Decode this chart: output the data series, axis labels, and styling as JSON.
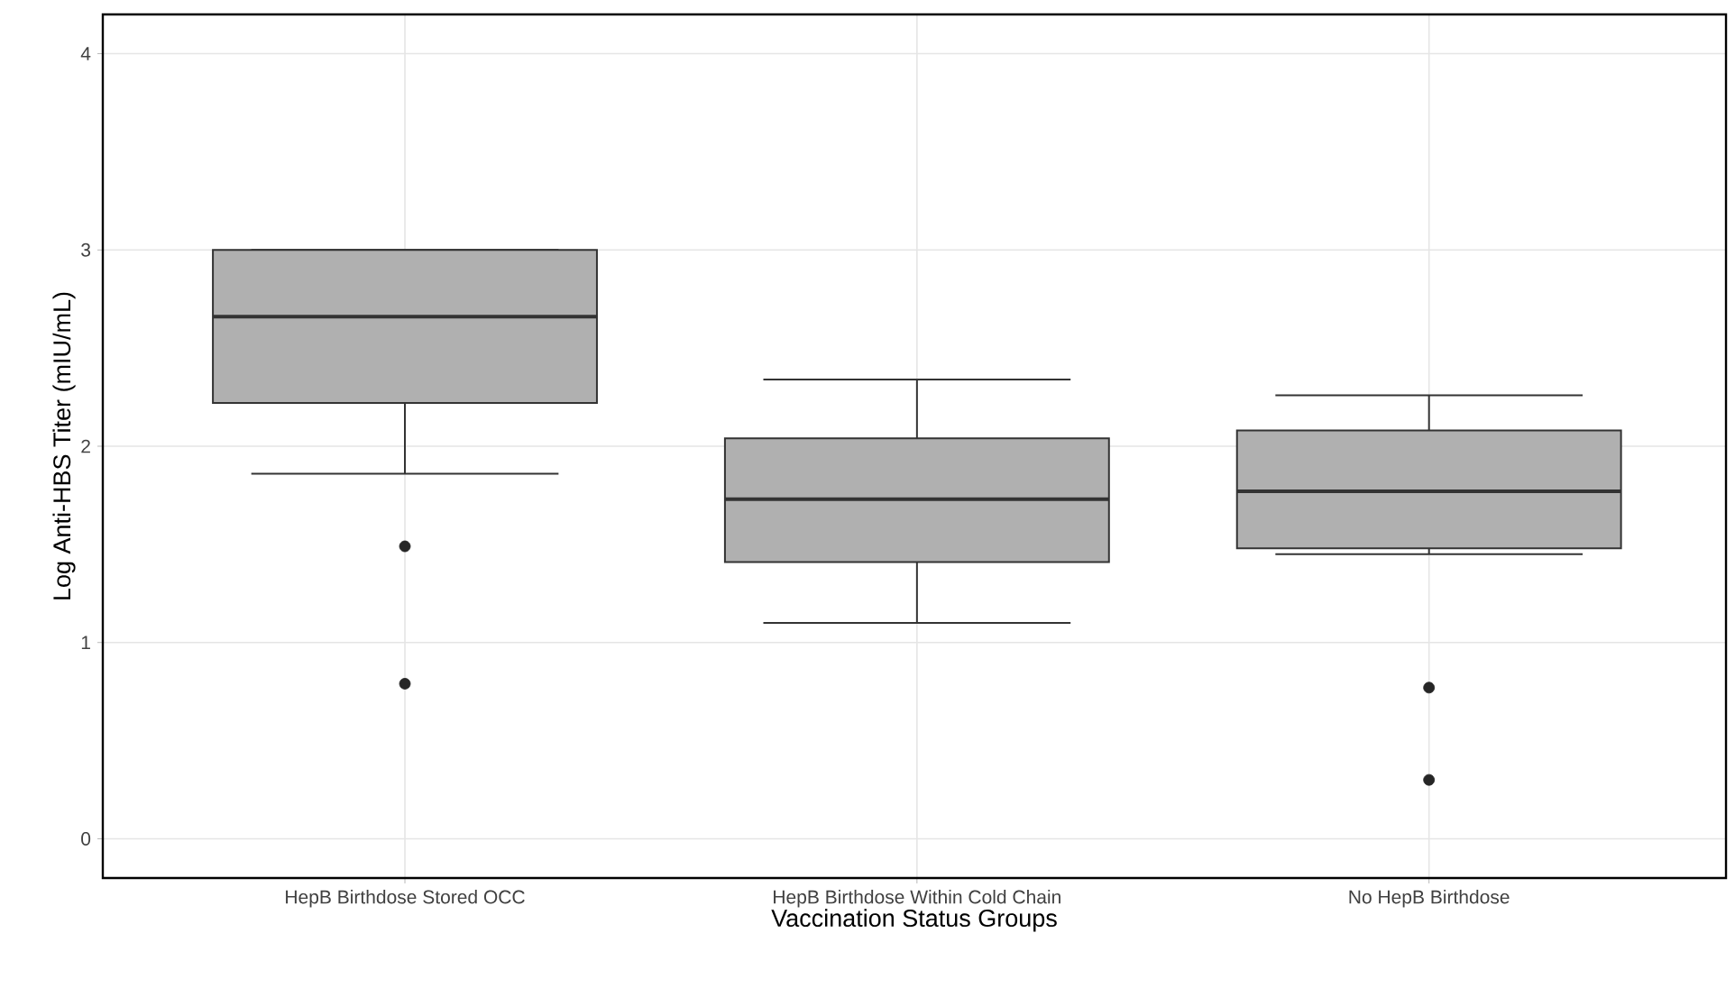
{
  "chart_data": {
    "type": "box",
    "xlabel": "Vaccination Status Groups",
    "ylabel": "Log Anti-HBS Titer (mIU/mL)",
    "categories": [
      "HepB Birthdose Stored OCC",
      "HepB Birthdose Within Cold Chain",
      "No HepB Birthdose"
    ],
    "boxes": [
      {
        "low": 1.86,
        "q1": 2.22,
        "median": 2.66,
        "q3": 3.0,
        "high": 3.0,
        "outliers": [
          1.49,
          0.79
        ]
      },
      {
        "low": 1.1,
        "q1": 1.41,
        "median": 1.73,
        "q3": 2.04,
        "high": 2.34
      },
      {
        "low": 1.45,
        "q1": 1.48,
        "median": 1.77,
        "q3": 2.08,
        "high": 2.26,
        "outliers": [
          0.77,
          0.3
        ]
      }
    ],
    "color": "#b0b0b0",
    "ylim": [
      -0.2,
      4.2
    ],
    "yticks": [
      0,
      1,
      2,
      3,
      4
    ],
    "grid": true
  }
}
